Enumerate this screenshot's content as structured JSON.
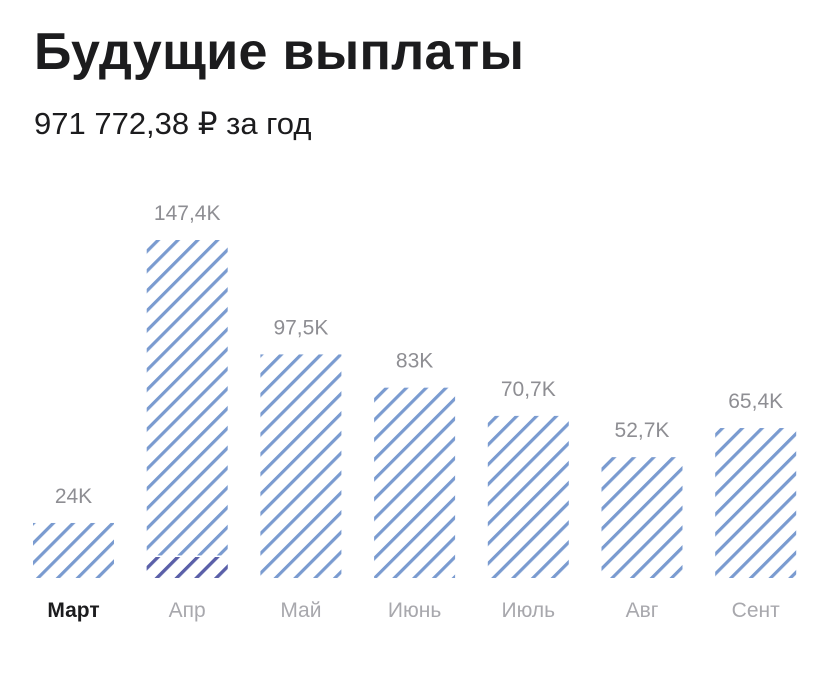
{
  "header": {
    "title": "Будущие выплаты",
    "subtitle": "971 772,38 ₽ за год"
  },
  "colors": {
    "bar_stripe": "#7a9bd0",
    "bar_stripe_dark": "#5b5fa8",
    "value_label": "#8e8e93",
    "active_category": "#1c1c1e",
    "inactive_category": "#a8a8ad"
  },
  "chart_data": {
    "type": "bar",
    "categories": [
      "Март",
      "Апр",
      "Май",
      "Июнь",
      "Июль",
      "Авг",
      "Сент"
    ],
    "values": [
      24.0,
      147.4,
      97.5,
      83.0,
      70.7,
      52.7,
      65.4
    ],
    "value_labels": [
      "24K",
      "147,4K",
      "97,5K",
      "83K",
      "70,7K",
      "52,7K",
      "65,4K"
    ],
    "active_category": "Март",
    "highlight_segment": {
      "category": "Апр",
      "value": 9.5
    },
    "ylim": [
      0,
      147.4
    ],
    "grid": false,
    "legend": "none"
  }
}
